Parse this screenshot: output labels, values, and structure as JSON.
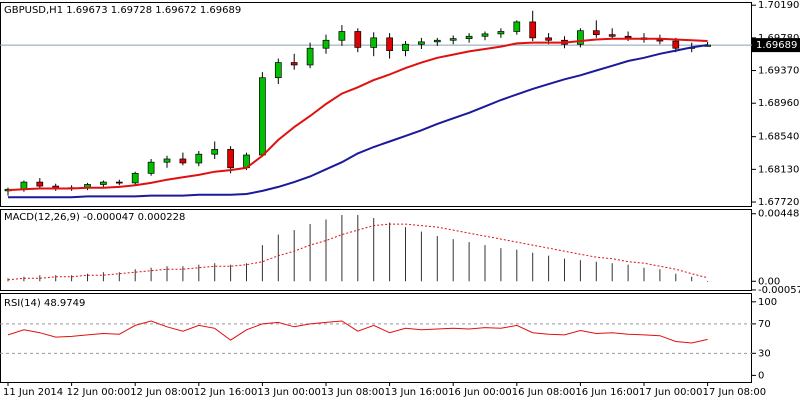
{
  "chart_data": [
    {
      "type": "candlestick",
      "title": "GBPUSD,H1  1.69673 1.69728 1.69672 1.69689",
      "categories": [
        "11 Jun 2014",
        null,
        null,
        null,
        "12 Jun 00:00",
        null,
        null,
        null,
        "12 Jun 08:00",
        null,
        null,
        null,
        "12 Jun 16:00",
        null,
        null,
        null,
        "13 Jun 00:00",
        null,
        null,
        null,
        "13 Jun 08:00",
        null,
        null,
        null,
        "13 Jun 16:00",
        null,
        null,
        null,
        "16 Jun 00:00",
        null,
        null,
        null,
        "16 Jun 08:00",
        null,
        null,
        null,
        "16 Jun 16:00",
        null,
        null,
        null,
        "17 Jun 00:00",
        null,
        null,
        null,
        "17 Jun 08:00"
      ],
      "open": [
        1.6786,
        1.6788,
        1.6797,
        1.6792,
        1.6789,
        1.679,
        1.6794,
        1.6797,
        1.6796,
        1.6808,
        1.6822,
        1.6826,
        1.6821,
        1.6832,
        1.6838,
        1.6815,
        1.6831,
        1.6928,
        1.6947,
        1.6944,
        1.6965,
        1.6975,
        1.6986,
        1.6966,
        1.6978,
        1.6962,
        1.697,
        1.6973,
        1.6975,
        1.6977,
        1.698,
        1.6983,
        1.6986,
        1.6998,
        1.6978,
        1.6975,
        1.697,
        1.6987,
        1.6982,
        1.698,
        1.6978,
        1.6976,
        1.6974,
        1.6965,
        1.69673
      ],
      "high": [
        1.679,
        1.6799,
        1.6802,
        1.6795,
        1.6793,
        1.6796,
        1.6799,
        1.68,
        1.681,
        1.6826,
        1.683,
        1.6834,
        1.6836,
        1.6848,
        1.6842,
        1.6834,
        1.6935,
        1.6952,
        1.6958,
        1.6972,
        1.6982,
        1.6994,
        1.699,
        1.6985,
        1.6984,
        1.6974,
        1.6978,
        1.6978,
        1.6981,
        1.6984,
        1.6986,
        1.699,
        1.7,
        1.7012,
        1.6984,
        1.698,
        1.699,
        1.7,
        1.699,
        1.6986,
        1.6984,
        1.6982,
        1.6978,
        1.6972,
        1.69728
      ],
      "low": [
        1.678,
        1.6785,
        1.679,
        1.6786,
        1.6786,
        1.6787,
        1.6791,
        1.6793,
        1.6794,
        1.6805,
        1.6815,
        1.6818,
        1.6817,
        1.6826,
        1.6808,
        1.6812,
        1.6829,
        1.692,
        1.6938,
        1.694,
        1.6958,
        1.6968,
        1.696,
        1.6955,
        1.6952,
        1.6955,
        1.6964,
        1.6968,
        1.697,
        1.6972,
        1.6975,
        1.6978,
        1.6982,
        1.6974,
        1.697,
        1.6965,
        1.6966,
        1.6978,
        1.6976,
        1.6974,
        1.6972,
        1.697,
        1.696,
        1.696,
        1.69672
      ],
      "close": [
        1.6788,
        1.6797,
        1.6792,
        1.6789,
        1.679,
        1.6794,
        1.6797,
        1.6796,
        1.6808,
        1.6822,
        1.6826,
        1.6821,
        1.6832,
        1.6838,
        1.6815,
        1.6831,
        1.6928,
        1.6947,
        1.6944,
        1.6965,
        1.6975,
        1.6986,
        1.6966,
        1.6978,
        1.6962,
        1.697,
        1.6973,
        1.6975,
        1.6977,
        1.698,
        1.6983,
        1.6986,
        1.6998,
        1.6978,
        1.6975,
        1.697,
        1.6987,
        1.6982,
        1.698,
        1.6978,
        1.6976,
        1.6974,
        1.6965,
        1.6966,
        1.69689
      ],
      "up_color": "#00c000",
      "down_color": "#e00000",
      "series": [
        {
          "color": "#e01010",
          "values": [
            1.6787,
            1.6788,
            1.6789,
            1.6789,
            1.6789,
            1.679,
            1.679,
            1.6791,
            1.6793,
            1.6796,
            1.68,
            1.6803,
            1.6806,
            1.681,
            1.6812,
            1.6815,
            1.683,
            1.685,
            1.6866,
            1.688,
            1.6895,
            1.6908,
            1.6916,
            1.6925,
            1.6932,
            1.694,
            1.6947,
            1.6953,
            1.6957,
            1.6961,
            1.6964,
            1.6967,
            1.6971,
            1.6972,
            1.6972,
            1.6972,
            1.6974,
            1.6976,
            1.6977,
            1.6977,
            1.6977,
            1.6977,
            1.6976,
            1.6975,
            1.6974
          ]
        },
        {
          "color": "#1a1a9a",
          "values": [
            1.6778,
            1.6778,
            1.6778,
            1.6778,
            1.6778,
            1.6779,
            1.6779,
            1.6779,
            1.6779,
            1.678,
            1.678,
            1.678,
            1.6781,
            1.6781,
            1.6781,
            1.6782,
            1.6786,
            1.6791,
            1.6797,
            1.6804,
            1.6813,
            1.6822,
            1.6833,
            1.6841,
            1.6848,
            1.6855,
            1.6862,
            1.687,
            1.6877,
            1.6884,
            1.6892,
            1.69,
            1.6907,
            1.6914,
            1.692,
            1.6926,
            1.6931,
            1.6937,
            1.6943,
            1.6949,
            1.6953,
            1.6958,
            1.6962,
            1.6966,
            1.6969
          ]
        }
      ],
      "current_price": {
        "value": 1.69689,
        "label": "1.69689"
      },
      "ylim": [
        1.6767,
        1.7023
      ],
      "yticks": [
        {
          "value": 1.7019,
          "label": "1.70190"
        },
        {
          "value": 1.6978,
          "label": "1.69780"
        },
        {
          "value": 1.6937,
          "label": "1.69370"
        },
        {
          "value": 1.6896,
          "label": "1.68960"
        },
        {
          "value": 1.6854,
          "label": "1.68540"
        },
        {
          "value": 1.6813,
          "label": "1.68130"
        },
        {
          "value": 1.6772,
          "label": "1.67720"
        }
      ]
    },
    {
      "type": "macd",
      "title": "MACD(12,26,9) -0.000047 0.000228",
      "histogram": [
        0.0002,
        0.0003,
        0.0004,
        0.0004,
        0.0004,
        0.0005,
        0.0006,
        0.0006,
        0.0008,
        0.0009,
        0.001,
        0.001,
        0.0011,
        0.0012,
        0.0011,
        0.0012,
        0.0024,
        0.0031,
        0.0034,
        0.0038,
        0.0041,
        0.0044,
        0.0044,
        0.0042,
        0.0039,
        0.0036,
        0.0033,
        0.003,
        0.0028,
        0.0026,
        0.0024,
        0.0022,
        0.0021,
        0.0019,
        0.0017,
        0.0015,
        0.0014,
        0.0013,
        0.0012,
        0.0011,
        0.0009,
        0.0008,
        0.0005,
        0.0003,
        -4.7e-05
      ],
      "signal": [
        0.0001,
        0.0002,
        0.0002,
        0.0003,
        0.0003,
        0.0004,
        0.0004,
        0.0005,
        0.0006,
        0.0007,
        0.0008,
        0.0008,
        0.0009,
        0.001,
        0.001,
        0.0011,
        0.0013,
        0.0017,
        0.002,
        0.0024,
        0.0027,
        0.0031,
        0.0034,
        0.0037,
        0.0038,
        0.0038,
        0.0037,
        0.0036,
        0.0034,
        0.0032,
        0.003,
        0.0028,
        0.0026,
        0.0024,
        0.0022,
        0.002,
        0.0018,
        0.0016,
        0.0015,
        0.0013,
        0.0012,
        0.001,
        0.0008,
        0.0005,
        0.000228
      ],
      "histogram_color": "#333333",
      "signal_color": "#e01010",
      "ylim": [
        -0.00058,
        0.0048
      ],
      "yticks": [
        0.004485,
        {
          "value": 0,
          "label": "0.00"
        },
        -0.000575
      ]
    },
    {
      "type": "line",
      "title": "RSI(14) 48.9749",
      "values": [
        55,
        62,
        58,
        52,
        53,
        55,
        57,
        56,
        68,
        74,
        66,
        60,
        68,
        64,
        48,
        62,
        70,
        72,
        66,
        70,
        72,
        74,
        60,
        68,
        58,
        64,
        62,
        63,
        64,
        63,
        65,
        64,
        68,
        58,
        56,
        55,
        61,
        57,
        58,
        56,
        55,
        54,
        46,
        44,
        48.9749
      ],
      "color": "#e01010",
      "levels": [
        70,
        30
      ],
      "ylim": [
        -9,
        112
      ],
      "yticks": [
        100,
        70,
        30,
        0
      ]
    }
  ]
}
